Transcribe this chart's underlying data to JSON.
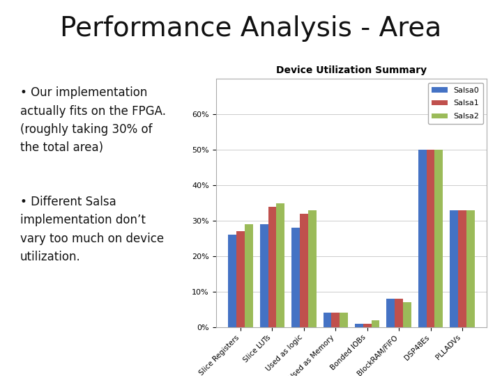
{
  "title": "Performance Analysis - Area",
  "chart_title": "Device Utilization Summary",
  "categories": [
    "Slice Registers",
    "Slice LUTs",
    "Used as logic",
    "Used as Memory",
    "Bonded IOBs",
    "BlockRAM/FIFO",
    "DSP48Es",
    "PLLADVs"
  ],
  "salsa0": [
    26,
    29,
    28,
    4,
    1,
    8,
    50,
    33
  ],
  "salsa1": [
    27,
    34,
    32,
    4,
    1,
    8,
    50,
    33
  ],
  "salsa2": [
    29,
    35,
    33,
    4,
    2,
    7,
    50,
    33
  ],
  "color0": "#4472C4",
  "color1": "#C0504D",
  "color2": "#9BBB59",
  "legend_labels": [
    "Salsa0",
    "Salsa1",
    "Salsa2"
  ],
  "ylim": [
    0,
    70
  ],
  "yticks": [
    0,
    10,
    20,
    30,
    40,
    50,
    60
  ],
  "ytick_labels": [
    "0%",
    "10%",
    "20%",
    "30%",
    "40%",
    "50%",
    "60%"
  ],
  "bullet1": "Our implementation\nactually fits on the FPGA.\n(roughly taking 30% of\nthe total area)",
  "bullet2": "Different Salsa\nimplementation don’t\nvary too much on device\nutilization.",
  "bg_color": "#FFFFFF",
  "chart_border_color": "#aaaaaa",
  "title_fontsize": 28,
  "bullet_fontsize": 12,
  "chart_title_fontsize": 10
}
